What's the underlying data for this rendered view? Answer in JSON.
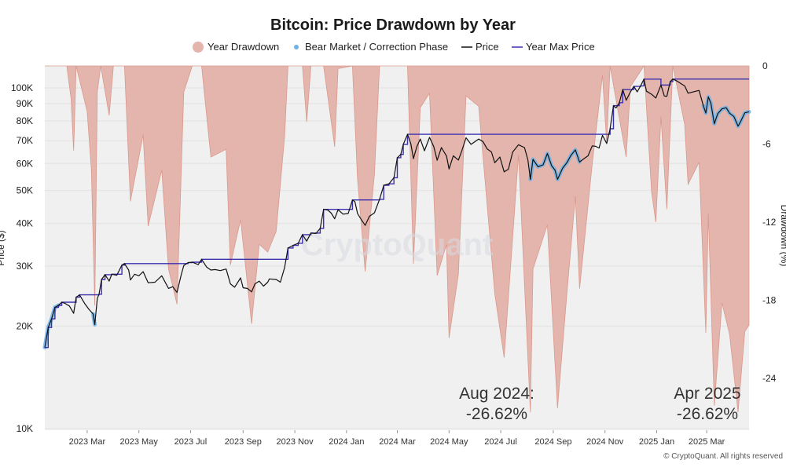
{
  "chart_data": {
    "type": "line",
    "title": "Bitcoin: Price Drawdown by Year",
    "ylabel_left": "Price ($)",
    "ylabel_right": "Drawdown (%)",
    "y_scale_left": "log",
    "ylim_left": [
      10000,
      120000
    ],
    "ylim_right": [
      -27,
      0
    ],
    "left_ticks": [
      {
        "v": 100000,
        "label": "100K"
      },
      {
        "v": 90000,
        "label": "90K"
      },
      {
        "v": 80000,
        "label": "80K"
      },
      {
        "v": 70000,
        "label": "70K"
      },
      {
        "v": 60000,
        "label": "60K"
      },
      {
        "v": 50000,
        "label": "50K"
      },
      {
        "v": 40000,
        "label": "40K"
      },
      {
        "v": 30000,
        "label": "30K"
      },
      {
        "v": 20000,
        "label": "20K"
      },
      {
        "v": 10000,
        "label": "10K"
      }
    ],
    "right_ticks": [
      {
        "v": 0,
        "label": "0"
      },
      {
        "v": -6,
        "label": "-6"
      },
      {
        "v": -12,
        "label": "-12"
      },
      {
        "v": -18,
        "label": "-18"
      },
      {
        "v": -24,
        "label": "-24"
      }
    ],
    "xlim": [
      "2023-01-10",
      "2025-04-20"
    ],
    "x_ticks": [
      {
        "date": "2023-03-01",
        "label": "2023 Mar"
      },
      {
        "date": "2023-05-01",
        "label": "2023 May"
      },
      {
        "date": "2023-07-01",
        "label": "2023 Jul"
      },
      {
        "date": "2023-09-01",
        "label": "2023 Sep"
      },
      {
        "date": "2023-11-01",
        "label": "2023 Nov"
      },
      {
        "date": "2024-01-01",
        "label": "2024 Jan"
      },
      {
        "date": "2024-03-01",
        "label": "2024 Mar"
      },
      {
        "date": "2024-05-01",
        "label": "2024 May"
      },
      {
        "date": "2024-07-01",
        "label": "2024 Jul"
      },
      {
        "date": "2024-09-01",
        "label": "2024 Sep"
      },
      {
        "date": "2024-11-01",
        "label": "2024 Nov"
      },
      {
        "date": "2025-01-01",
        "label": "2025 Jan"
      },
      {
        "date": "2025-03-01",
        "label": "2025 Mar"
      }
    ],
    "legend": {
      "placement": "top-center",
      "drawdown": "Year Drawdown",
      "bear": "Bear Market / Correction Phase",
      "price": "Price",
      "max": "Year Max Price"
    },
    "colors": {
      "drawdown_fill": "#e4b5ac",
      "drawdown_stroke": "#d9998d",
      "bear": "#6fb3e6",
      "price": "#111111",
      "max": "#3b2fb0",
      "plot_bg": "#f0f0f0"
    },
    "annotations": [
      {
        "line1": "Aug 2024:",
        "line2": "-26.62%",
        "date": "2024-08-05"
      },
      {
        "line1": "Apr 2025",
        "line2": "-26.62%",
        "date": "2025-04-07"
      }
    ],
    "watermark": "CryptoQuant",
    "credit": "© CryptoQuant. All rights reserved",
    "price_series": [
      [
        "2023-01-10",
        17300
      ],
      [
        "2023-01-14",
        19800
      ],
      [
        "2023-01-18",
        21000
      ],
      [
        "2023-01-22",
        22700
      ],
      [
        "2023-01-26",
        23000
      ],
      [
        "2023-01-30",
        23500
      ],
      [
        "2023-02-03",
        23300
      ],
      [
        "2023-02-08",
        22900
      ],
      [
        "2023-02-13",
        21800
      ],
      [
        "2023-02-16",
        24300
      ],
      [
        "2023-02-20",
        24700
      ],
      [
        "2023-02-26",
        23300
      ],
      [
        "2023-03-03",
        22400
      ],
      [
        "2023-03-08",
        21700
      ],
      [
        "2023-03-10",
        20200
      ],
      [
        "2023-03-13",
        24100
      ],
      [
        "2023-03-15",
        24800
      ],
      [
        "2023-03-18",
        27400
      ],
      [
        "2023-03-22",
        28300
      ],
      [
        "2023-03-27",
        27100
      ],
      [
        "2023-03-30",
        28400
      ],
      [
        "2023-04-05",
        28200
      ],
      [
        "2023-04-11",
        30200
      ],
      [
        "2023-04-14",
        30500
      ],
      [
        "2023-04-19",
        29200
      ],
      [
        "2023-04-21",
        27300
      ],
      [
        "2023-04-26",
        28400
      ],
      [
        "2023-05-01",
        28100
      ],
      [
        "2023-05-06",
        28900
      ],
      [
        "2023-05-12",
        26800
      ],
      [
        "2023-05-20",
        26900
      ],
      [
        "2023-05-28",
        28100
      ],
      [
        "2023-06-05",
        25800
      ],
      [
        "2023-06-10",
        26100
      ],
      [
        "2023-06-15",
        25100
      ],
      [
        "2023-06-20",
        28300
      ],
      [
        "2023-06-23",
        30100
      ],
      [
        "2023-06-28",
        30700
      ],
      [
        "2023-07-03",
        30800
      ],
      [
        "2023-07-10",
        30300
      ],
      [
        "2023-07-14",
        31400
      ],
      [
        "2023-07-20",
        29800
      ],
      [
        "2023-07-25",
        29200
      ],
      [
        "2023-07-30",
        29300
      ],
      [
        "2023-08-05",
        29100
      ],
      [
        "2023-08-12",
        29400
      ],
      [
        "2023-08-17",
        26600
      ],
      [
        "2023-08-22",
        26000
      ],
      [
        "2023-08-29",
        27700
      ],
      [
        "2023-09-01",
        25900
      ],
      [
        "2023-09-06",
        25800
      ],
      [
        "2023-09-11",
        25200
      ],
      [
        "2023-09-15",
        26600
      ],
      [
        "2023-09-20",
        27100
      ],
      [
        "2023-09-25",
        26200
      ],
      [
        "2023-09-30",
        26900
      ],
      [
        "2023-10-02",
        27500
      ],
      [
        "2023-10-10",
        27400
      ],
      [
        "2023-10-15",
        26900
      ],
      [
        "2023-10-20",
        29700
      ],
      [
        "2023-10-24",
        33900
      ],
      [
        "2023-10-30",
        34500
      ],
      [
        "2023-11-05",
        35000
      ],
      [
        "2023-11-10",
        37100
      ],
      [
        "2023-11-15",
        35500
      ],
      [
        "2023-11-20",
        37500
      ],
      [
        "2023-11-26",
        37400
      ],
      [
        "2023-12-01",
        38700
      ],
      [
        "2023-12-05",
        44000
      ],
      [
        "2023-12-10",
        43800
      ],
      [
        "2023-12-14",
        42900
      ],
      [
        "2023-12-18",
        41300
      ],
      [
        "2023-12-22",
        43900
      ],
      [
        "2023-12-28",
        42600
      ],
      [
        "2024-01-03",
        42800
      ],
      [
        "2024-01-08",
        46900
      ],
      [
        "2024-01-11",
        46300
      ],
      [
        "2024-01-14",
        42800
      ],
      [
        "2024-01-18",
        41200
      ],
      [
        "2024-01-23",
        39500
      ],
      [
        "2024-01-28",
        42000
      ],
      [
        "2024-02-03",
        43000
      ],
      [
        "2024-02-09",
        47100
      ],
      [
        "2024-02-14",
        51800
      ],
      [
        "2024-02-20",
        52300
      ],
      [
        "2024-02-26",
        54500
      ],
      [
        "2024-03-01",
        62400
      ],
      [
        "2024-03-05",
        63800
      ],
      [
        "2024-03-08",
        68300
      ],
      [
        "2024-03-13",
        73100
      ],
      [
        "2024-03-17",
        68400
      ],
      [
        "2024-03-20",
        62000
      ],
      [
        "2024-03-24",
        67200
      ],
      [
        "2024-03-28",
        70800
      ],
      [
        "2024-04-02",
        65400
      ],
      [
        "2024-04-08",
        71600
      ],
      [
        "2024-04-13",
        67200
      ],
      [
        "2024-04-17",
        61300
      ],
      [
        "2024-04-22",
        66800
      ],
      [
        "2024-04-28",
        63100
      ],
      [
        "2024-05-01",
        57800
      ],
      [
        "2024-05-06",
        63200
      ],
      [
        "2024-05-12",
        61400
      ],
      [
        "2024-05-16",
        65300
      ],
      [
        "2024-05-21",
        71400
      ],
      [
        "2024-05-27",
        68300
      ],
      [
        "2024-06-05",
        70800
      ],
      [
        "2024-06-10",
        69600
      ],
      [
        "2024-06-15",
        66200
      ],
      [
        "2024-06-20",
        64900
      ],
      [
        "2024-06-24",
        60300
      ],
      [
        "2024-06-30",
        62700
      ],
      [
        "2024-07-05",
        56700
      ],
      [
        "2024-07-10",
        57700
      ],
      [
        "2024-07-15",
        64800
      ],
      [
        "2024-07-22",
        68100
      ],
      [
        "2024-07-29",
        66800
      ],
      [
        "2024-08-02",
        61500
      ],
      [
        "2024-08-05",
        53900
      ],
      [
        "2024-08-08",
        61700
      ],
      [
        "2024-08-14",
        58700
      ],
      [
        "2024-08-20",
        59500
      ],
      [
        "2024-08-25",
        64200
      ],
      [
        "2024-08-30",
        59100
      ],
      [
        "2024-09-03",
        57400
      ],
      [
        "2024-09-06",
        53900
      ],
      [
        "2024-09-12",
        58100
      ],
      [
        "2024-09-17",
        60300
      ],
      [
        "2024-09-22",
        63500
      ],
      [
        "2024-09-27",
        65800
      ],
      [
        "2024-10-02",
        60600
      ],
      [
        "2024-10-08",
        62200
      ],
      [
        "2024-10-12",
        63200
      ],
      [
        "2024-10-17",
        67600
      ],
      [
        "2024-10-21",
        67400
      ],
      [
        "2024-10-25",
        66600
      ],
      [
        "2024-10-29",
        72600
      ],
      [
        "2024-11-03",
        68700
      ],
      [
        "2024-11-07",
        75900
      ],
      [
        "2024-11-11",
        88700
      ],
      [
        "2024-11-14",
        87300
      ],
      [
        "2024-11-18",
        90500
      ],
      [
        "2024-11-22",
        98900
      ],
      [
        "2024-11-26",
        92000
      ],
      [
        "2024-12-01",
        97300
      ],
      [
        "2024-12-05",
        101000
      ],
      [
        "2024-12-09",
        97400
      ],
      [
        "2024-12-13",
        101400
      ],
      [
        "2024-12-17",
        106100
      ],
      [
        "2024-12-20",
        97800
      ],
      [
        "2024-12-26",
        95800
      ],
      [
        "2024-12-31",
        93400
      ],
      [
        "2025-01-06",
        102000
      ],
      [
        "2025-01-10",
        94700
      ],
      [
        "2025-01-13",
        94500
      ],
      [
        "2025-01-17",
        104400
      ],
      [
        "2025-01-20",
        106200
      ],
      [
        "2025-01-25",
        104700
      ],
      [
        "2025-01-31",
        102400
      ],
      [
        "2025-02-03",
        101400
      ],
      [
        "2025-02-07",
        96500
      ],
      [
        "2025-02-14",
        97500
      ],
      [
        "2025-02-20",
        98300
      ],
      [
        "2025-02-25",
        88700
      ],
      [
        "2025-02-28",
        84400
      ],
      [
        "2025-03-03",
        94200
      ],
      [
        "2025-03-06",
        90000
      ],
      [
        "2025-03-10",
        78500
      ],
      [
        "2025-03-14",
        84000
      ],
      [
        "2025-03-19",
        86800
      ],
      [
        "2025-03-24",
        87500
      ],
      [
        "2025-03-28",
        84300
      ],
      [
        "2025-04-02",
        82500
      ],
      [
        "2025-04-07",
        77200
      ],
      [
        "2025-04-10",
        79600
      ],
      [
        "2025-04-15",
        84500
      ],
      [
        "2025-04-20",
        85100
      ]
    ],
    "year_max_series": [
      [
        "2023-01-10",
        17300
      ],
      [
        "2023-01-14",
        19800
      ],
      [
        "2023-01-18",
        21000
      ],
      [
        "2023-01-22",
        22700
      ],
      [
        "2023-01-26",
        23000
      ],
      [
        "2023-01-30",
        23500
      ],
      [
        "2023-02-16",
        24300
      ],
      [
        "2023-02-20",
        24700
      ],
      [
        "2023-03-15",
        24800
      ],
      [
        "2023-03-18",
        27400
      ],
      [
        "2023-03-22",
        28300
      ],
      [
        "2023-03-30",
        28400
      ],
      [
        "2023-04-11",
        30200
      ],
      [
        "2023-04-14",
        30500
      ],
      [
        "2023-06-28",
        30700
      ],
      [
        "2023-07-03",
        30800
      ],
      [
        "2023-07-14",
        31400
      ],
      [
        "2023-10-24",
        33900
      ],
      [
        "2023-10-30",
        34500
      ],
      [
        "2023-11-05",
        35000
      ],
      [
        "2023-11-10",
        37100
      ],
      [
        "2023-11-20",
        37500
      ],
      [
        "2023-12-01",
        38700
      ],
      [
        "2023-12-05",
        44000
      ],
      [
        "2024-01-08",
        46900
      ],
      [
        "2024-02-09",
        47100
      ],
      [
        "2024-02-14",
        51800
      ],
      [
        "2024-02-20",
        52300
      ],
      [
        "2024-02-26",
        54500
      ],
      [
        "2024-03-01",
        62400
      ],
      [
        "2024-03-05",
        63800
      ],
      [
        "2024-03-08",
        68300
      ],
      [
        "2024-03-13",
        73100
      ],
      [
        "2024-11-07",
        75900
      ],
      [
        "2024-11-11",
        88700
      ],
      [
        "2024-11-18",
        90500
      ],
      [
        "2024-11-22",
        98900
      ],
      [
        "2024-12-05",
        101000
      ],
      [
        "2024-12-13",
        101400
      ],
      [
        "2024-12-17",
        106100
      ],
      [
        "2025-01-06",
        102000
      ],
      [
        "2025-01-17",
        104400
      ],
      [
        "2025-01-20",
        106200
      ],
      [
        "2025-04-20",
        106200
      ]
    ],
    "drawdown_series": [
      [
        "2023-01-10",
        0
      ],
      [
        "2023-02-05",
        0
      ],
      [
        "2023-02-10",
        -2.5
      ],
      [
        "2023-02-13",
        -6.5
      ],
      [
        "2023-02-16",
        0
      ],
      [
        "2023-03-01",
        -3.5
      ],
      [
        "2023-03-06",
        -8
      ],
      [
        "2023-03-10",
        -18.4
      ],
      [
        "2023-03-13",
        -2
      ],
      [
        "2023-03-17",
        0
      ],
      [
        "2023-03-27",
        -3.8
      ],
      [
        "2023-04-01",
        0
      ],
      [
        "2023-04-14",
        0
      ],
      [
        "2023-04-21",
        -10.4
      ],
      [
        "2023-05-06",
        -5.3
      ],
      [
        "2023-05-12",
        -12.3
      ],
      [
        "2023-05-28",
        -8
      ],
      [
        "2023-06-05",
        -15.6
      ],
      [
        "2023-06-15",
        -18.3
      ],
      [
        "2023-06-23",
        -2
      ],
      [
        "2023-07-03",
        0
      ],
      [
        "2023-07-14",
        0
      ],
      [
        "2023-07-25",
        -7
      ],
      [
        "2023-08-12",
        -6.4
      ],
      [
        "2023-08-17",
        -15.3
      ],
      [
        "2023-08-29",
        -11.8
      ],
      [
        "2023-09-11",
        -19.8
      ],
      [
        "2023-09-20",
        -13.7
      ],
      [
        "2023-09-30",
        -14.3
      ],
      [
        "2023-10-10",
        -12.7
      ],
      [
        "2023-10-20",
        -5.4
      ],
      [
        "2023-10-24",
        0
      ],
      [
        "2023-11-10",
        0
      ],
      [
        "2023-11-15",
        -4.3
      ],
      [
        "2023-11-20",
        0
      ],
      [
        "2023-12-05",
        0
      ],
      [
        "2023-12-18",
        -6.2
      ],
      [
        "2023-12-22",
        -0.2
      ],
      [
        "2024-01-08",
        0
      ],
      [
        "2024-01-14",
        -8.7
      ],
      [
        "2024-01-23",
        -15.8
      ],
      [
        "2024-02-03",
        -8.3
      ],
      [
        "2024-02-09",
        0
      ],
      [
        "2024-03-13",
        0
      ],
      [
        "2024-03-20",
        -15.2
      ],
      [
        "2024-03-28",
        -3.2
      ],
      [
        "2024-04-08",
        -2.1
      ],
      [
        "2024-04-17",
        -16.1
      ],
      [
        "2024-04-28",
        -13.7
      ],
      [
        "2024-05-01",
        -20.9
      ],
      [
        "2024-05-12",
        -16
      ],
      [
        "2024-05-21",
        -2.3
      ],
      [
        "2024-06-05",
        -3.1
      ],
      [
        "2024-06-24",
        -17.5
      ],
      [
        "2024-07-05",
        -22.4
      ],
      [
        "2024-07-22",
        -6.8
      ],
      [
        "2024-08-05",
        -26.6
      ],
      [
        "2024-08-08",
        -15.6
      ],
      [
        "2024-08-25",
        -12.2
      ],
      [
        "2024-09-06",
        -26.3
      ],
      [
        "2024-09-17",
        -17.5
      ],
      [
        "2024-09-27",
        -10
      ],
      [
        "2024-10-02",
        -17.1
      ],
      [
        "2024-10-17",
        -7.5
      ],
      [
        "2024-10-29",
        -0.7
      ],
      [
        "2024-11-03",
        -6
      ],
      [
        "2024-11-07",
        0
      ],
      [
        "2024-11-26",
        -7
      ],
      [
        "2024-12-01",
        -1.6
      ],
      [
        "2024-12-17",
        0
      ],
      [
        "2024-12-26",
        -9.7
      ],
      [
        "2024-12-31",
        -12
      ],
      [
        "2025-01-06",
        -3.9
      ],
      [
        "2025-01-13",
        -11
      ],
      [
        "2025-01-20",
        0
      ],
      [
        "2025-02-03",
        -4.5
      ],
      [
        "2025-02-07",
        -9.1
      ],
      [
        "2025-02-20",
        -7.4
      ],
      [
        "2025-02-28",
        -20.5
      ],
      [
        "2025-03-03",
        -11.3
      ],
      [
        "2025-03-10",
        -26.1
      ],
      [
        "2025-03-19",
        -18.2
      ],
      [
        "2025-03-28",
        -20.6
      ],
      [
        "2025-04-07",
        -26.6
      ],
      [
        "2025-04-15",
        -20.4
      ],
      [
        "2025-04-20",
        -19.9
      ]
    ],
    "bear_ranges": [
      [
        "2023-01-10",
        "2023-01-26"
      ],
      [
        "2023-03-06",
        "2023-03-10"
      ],
      [
        "2024-08-05",
        "2024-10-02"
      ],
      [
        "2025-02-25",
        "2025-04-20"
      ]
    ]
  }
}
